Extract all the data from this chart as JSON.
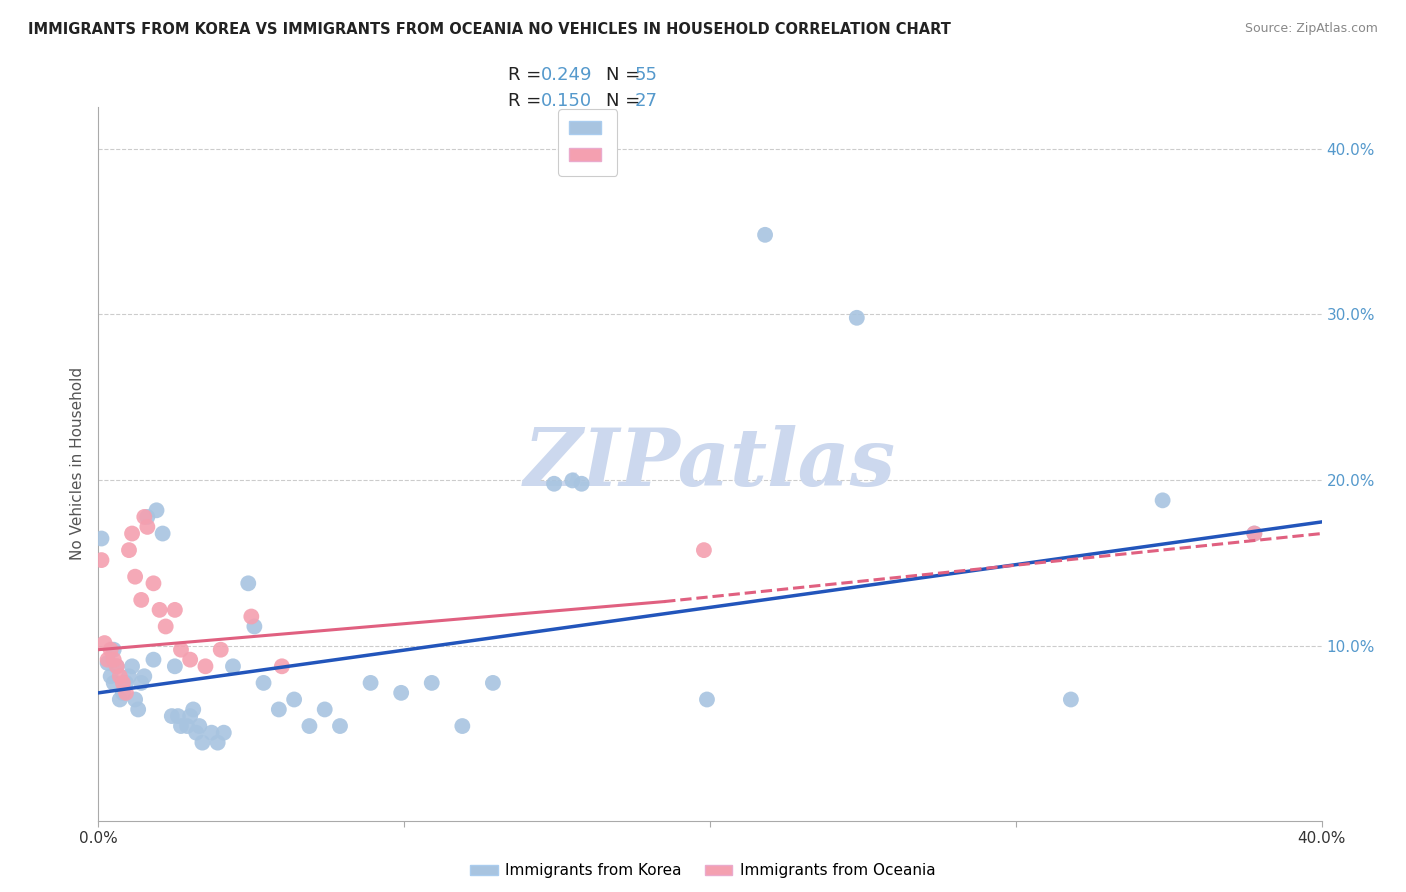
{
  "title": "IMMIGRANTS FROM KOREA VS IMMIGRANTS FROM OCEANIA NO VEHICLES IN HOUSEHOLD CORRELATION CHART",
  "source": "Source: ZipAtlas.com",
  "ylabel": "No Vehicles in Household",
  "ytick_labels": [
    "10.0%",
    "20.0%",
    "30.0%",
    "40.0%"
  ],
  "ytick_values": [
    0.1,
    0.2,
    0.3,
    0.4
  ],
  "xlim": [
    0.0,
    0.4
  ],
  "ylim": [
    -0.005,
    0.425
  ],
  "legend_r_korea": "0.249",
  "legend_n_korea": "55",
  "legend_r_oceania": "0.150",
  "legend_n_oceania": "27",
  "korea_color": "#a8c4e0",
  "oceania_color": "#f4a0b0",
  "korea_line_color": "#2255bb",
  "oceania_line_color": "#e06080",
  "korea_line": [
    [
      0.0,
      0.072
    ],
    [
      0.4,
      0.175
    ]
  ],
  "oceania_line_solid": [
    [
      0.0,
      0.098
    ],
    [
      0.185,
      0.127
    ]
  ],
  "oceania_line_dashed": [
    [
      0.185,
      0.127
    ],
    [
      0.4,
      0.168
    ]
  ],
  "korea_scatter": [
    [
      0.001,
      0.165
    ],
    [
      0.003,
      0.09
    ],
    [
      0.004,
      0.082
    ],
    [
      0.005,
      0.098
    ],
    [
      0.005,
      0.078
    ],
    [
      0.006,
      0.088
    ],
    [
      0.007,
      0.068
    ],
    [
      0.008,
      0.072
    ],
    [
      0.009,
      0.078
    ],
    [
      0.01,
      0.082
    ],
    [
      0.011,
      0.088
    ],
    [
      0.012,
      0.068
    ],
    [
      0.013,
      0.062
    ],
    [
      0.014,
      0.078
    ],
    [
      0.015,
      0.082
    ],
    [
      0.016,
      0.178
    ],
    [
      0.018,
      0.092
    ],
    [
      0.019,
      0.182
    ],
    [
      0.021,
      0.168
    ],
    [
      0.024,
      0.058
    ],
    [
      0.025,
      0.088
    ],
    [
      0.026,
      0.058
    ],
    [
      0.027,
      0.052
    ],
    [
      0.029,
      0.052
    ],
    [
      0.03,
      0.058
    ],
    [
      0.031,
      0.062
    ],
    [
      0.032,
      0.048
    ],
    [
      0.033,
      0.052
    ],
    [
      0.034,
      0.042
    ],
    [
      0.037,
      0.048
    ],
    [
      0.039,
      0.042
    ],
    [
      0.041,
      0.048
    ],
    [
      0.044,
      0.088
    ],
    [
      0.049,
      0.138
    ],
    [
      0.051,
      0.112
    ],
    [
      0.054,
      0.078
    ],
    [
      0.059,
      0.062
    ],
    [
      0.064,
      0.068
    ],
    [
      0.069,
      0.052
    ],
    [
      0.074,
      0.062
    ],
    [
      0.079,
      0.052
    ],
    [
      0.089,
      0.078
    ],
    [
      0.099,
      0.072
    ],
    [
      0.109,
      0.078
    ],
    [
      0.119,
      0.052
    ],
    [
      0.129,
      0.078
    ],
    [
      0.149,
      0.198
    ],
    [
      0.158,
      0.198
    ],
    [
      0.199,
      0.068
    ],
    [
      0.218,
      0.348
    ],
    [
      0.248,
      0.298
    ],
    [
      0.318,
      0.068
    ],
    [
      0.348,
      0.188
    ],
    [
      0.378,
      0.168
    ],
    [
      0.155,
      0.2
    ]
  ],
  "oceania_scatter": [
    [
      0.001,
      0.152
    ],
    [
      0.002,
      0.102
    ],
    [
      0.003,
      0.092
    ],
    [
      0.004,
      0.098
    ],
    [
      0.005,
      0.092
    ],
    [
      0.006,
      0.088
    ],
    [
      0.007,
      0.082
    ],
    [
      0.008,
      0.078
    ],
    [
      0.009,
      0.072
    ],
    [
      0.01,
      0.158
    ],
    [
      0.011,
      0.168
    ],
    [
      0.012,
      0.142
    ],
    [
      0.014,
      0.128
    ],
    [
      0.015,
      0.178
    ],
    [
      0.016,
      0.172
    ],
    [
      0.018,
      0.138
    ],
    [
      0.02,
      0.122
    ],
    [
      0.022,
      0.112
    ],
    [
      0.025,
      0.122
    ],
    [
      0.027,
      0.098
    ],
    [
      0.03,
      0.092
    ],
    [
      0.035,
      0.088
    ],
    [
      0.04,
      0.098
    ],
    [
      0.05,
      0.118
    ],
    [
      0.06,
      0.088
    ],
    [
      0.198,
      0.158
    ],
    [
      0.378,
      0.168
    ]
  ],
  "background_color": "#ffffff",
  "watermark_text": "ZIPatlas",
  "watermark_color": "#ccd8ee",
  "grid_color": "#cccccc",
  "tick_color_right": "#5599cc",
  "label_color": "#555555",
  "title_color": "#222222",
  "source_color": "#888888"
}
